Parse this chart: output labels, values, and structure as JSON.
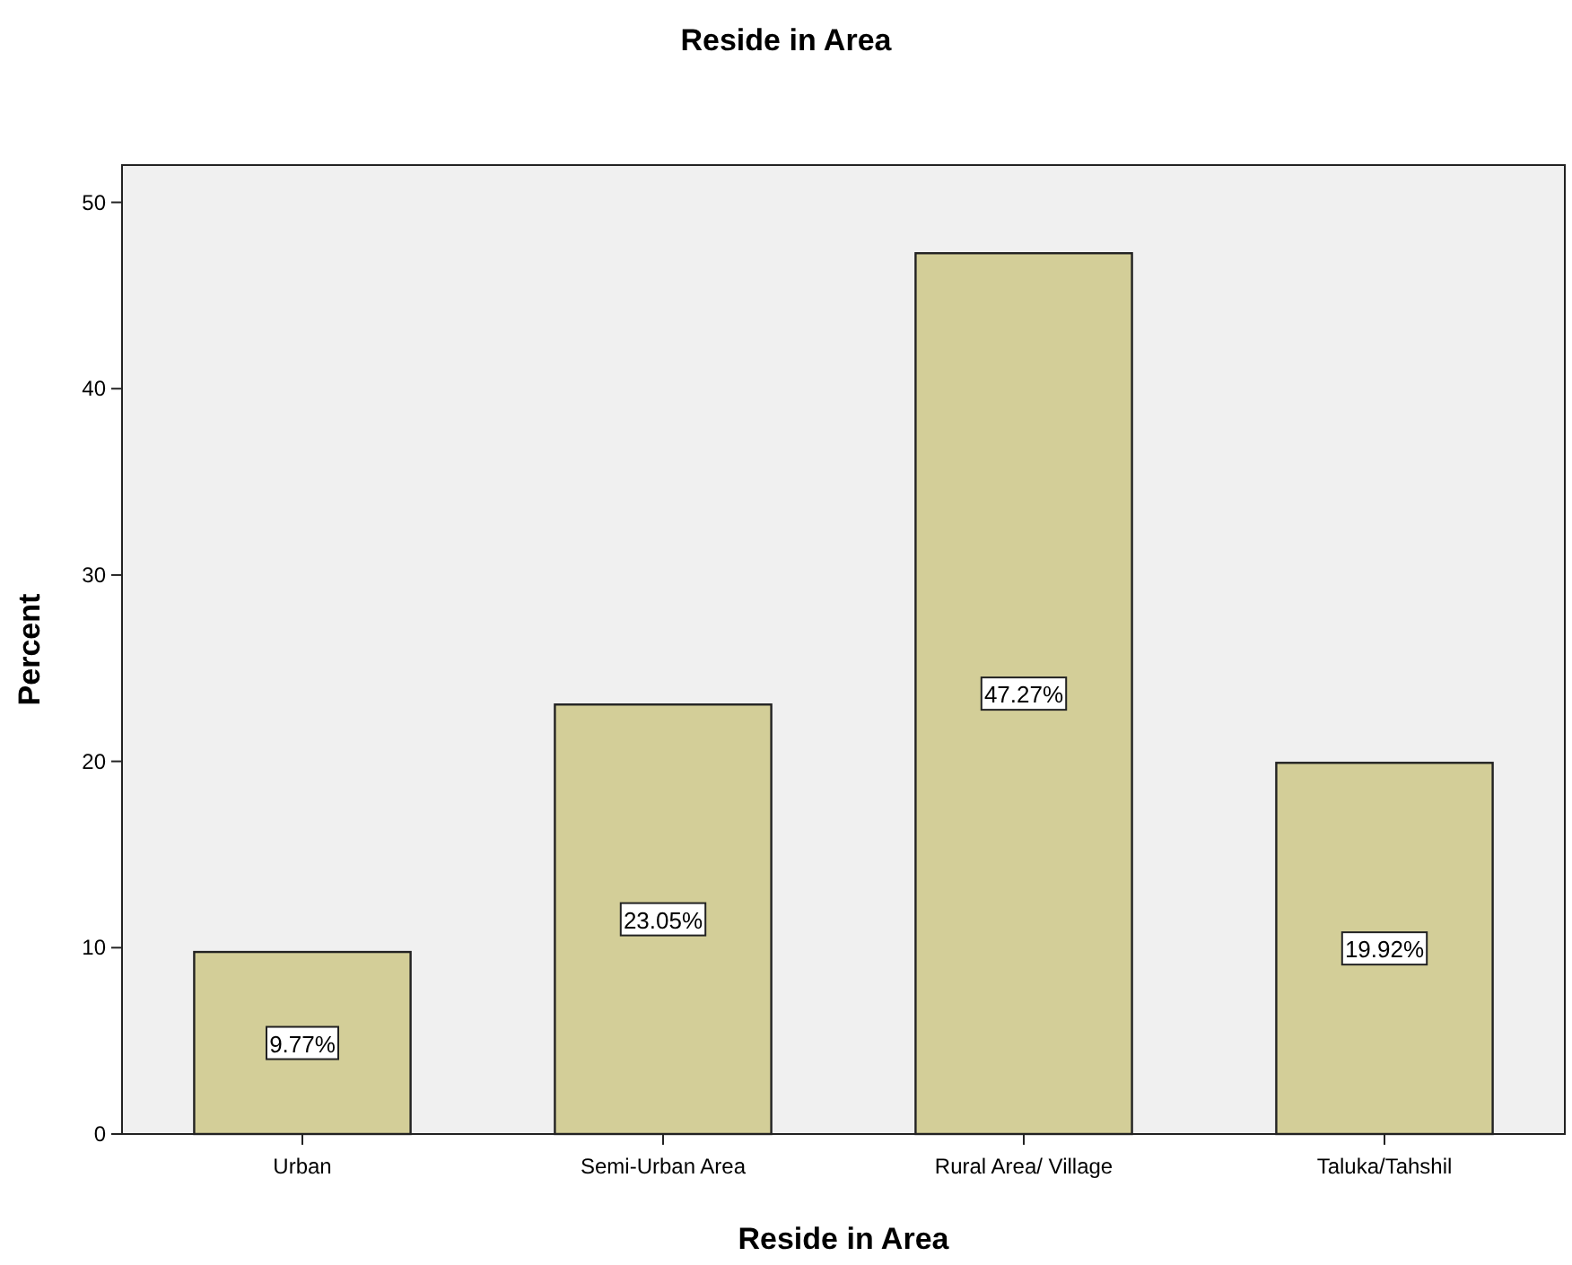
{
  "chart_data": {
    "type": "bar",
    "title": "Reside in Area",
    "xlabel": "Reside in Area",
    "ylabel": "Percent",
    "categories": [
      "Urban",
      "Semi-Urban Area",
      "Rural Area/ Village",
      "Taluka/Tahshil"
    ],
    "values": [
      9.77,
      23.05,
      47.27,
      19.92
    ],
    "value_labels": [
      "9.77%",
      "23.05%",
      "47.27%",
      "19.92%"
    ],
    "color": "#d3ce98",
    "ylim": [
      0,
      52
    ],
    "yticks": [
      0,
      10,
      20,
      30,
      40,
      50
    ],
    "grid": false
  }
}
